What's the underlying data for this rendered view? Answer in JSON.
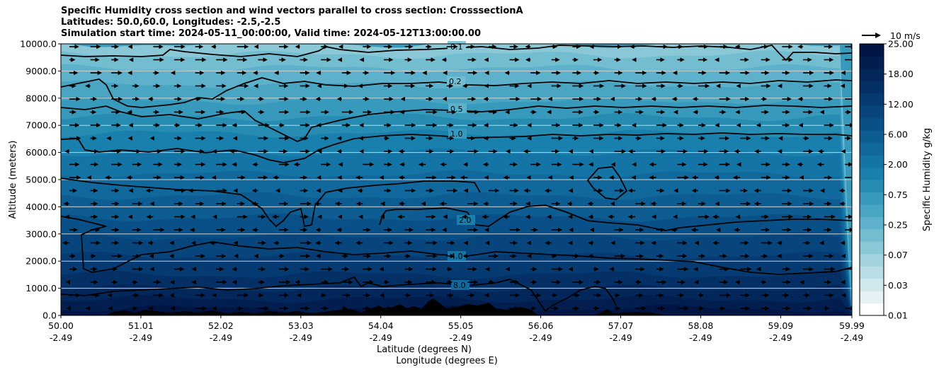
{
  "chart_data": {
    "type": "heatmap",
    "title_lines": [
      "Specific Humidity cross section and wind vectors parallel to cross section: CrosssectionA",
      "Latitudes: 50.0,60.0, Longitudes: -2.5,-2.5",
      "Simulation start time: 2024-05-11_00:00:00, Valid time: 2024-05-12T13:00:00.00"
    ],
    "ylabel": "Altitude (meters)",
    "xlabel_lat": "Latitude (degrees N)",
    "xlabel_lon": "Longitude (degrees E)",
    "ylim": [
      0,
      10000
    ],
    "y_ticks": [
      "0.0",
      "1000.0",
      "2000.0",
      "3000.0",
      "4000.0",
      "5000.0",
      "6000.0",
      "7000.0",
      "8000.0",
      "9000.0",
      "10000.0"
    ],
    "x_range": [
      50.0,
      59.99
    ],
    "x_ticks": [
      {
        "lat": "50.00",
        "lon": "-2.49"
      },
      {
        "lat": "51.01",
        "lon": "-2.49"
      },
      {
        "lat": "52.02",
        "lon": "-2.49"
      },
      {
        "lat": "53.03",
        "lon": "-2.49"
      },
      {
        "lat": "54.04",
        "lon": "-2.49"
      },
      {
        "lat": "55.05",
        "lon": "-2.49"
      },
      {
        "lat": "56.06",
        "lon": "-2.49"
      },
      {
        "lat": "57.07",
        "lon": "-2.49"
      },
      {
        "lat": "58.08",
        "lon": "-2.49"
      },
      {
        "lat": "59.09",
        "lon": "-2.49"
      },
      {
        "lat": "59.99",
        "lon": "-2.49"
      }
    ],
    "grid": "horizontal",
    "colorbar": {
      "label": "Specific Humidity g/kg",
      "levels": [
        0.01,
        0.02,
        0.03,
        0.05,
        0.07,
        0.1,
        0.25,
        0.35,
        0.5,
        0.75,
        1.0,
        1.5,
        2.0,
        3.0,
        4.0,
        6.0,
        8.0,
        10.0,
        12.0,
        15.0,
        18.0,
        20.0,
        25.0
      ],
      "tick_labels": [
        "0.01",
        "0.03",
        "0.07",
        "0.25",
        "0.75",
        "2.00",
        "6.00",
        "12.00",
        "18.00",
        "25.00"
      ],
      "colors": [
        "#ffffff",
        "#e4f2f3",
        "#cfe8ec",
        "#b8dde5",
        "#a3d3de",
        "#8ac8d8",
        "#73bdd1",
        "#5eb1cb",
        "#4aa5c3",
        "#3799bb",
        "#268cb2",
        "#1980ad",
        "#1474a5",
        "#10689c",
        "#0d5c92",
        "#0a5088",
        "#08457d",
        "#063a72",
        "#043066",
        "#03275b",
        "#021e4f",
        "#011544"
      ]
    },
    "quiver_key": "10 m/s",
    "contour_levels": [
      {
        "value": 0.1,
        "label": "0.1",
        "approx_altitude_m": 9700
      },
      {
        "value": 0.2,
        "label": "0.2",
        "approx_altitude_m": 8500
      },
      {
        "value": 0.5,
        "label": "0.5",
        "approx_altitude_m": 7600
      },
      {
        "value": 1.0,
        "label": "1.0",
        "approx_altitude_m": 6500
      },
      {
        "value": 2.0,
        "label": "2.0",
        "approx_altitude_m": 3400
      },
      {
        "value": 4.0,
        "label": "4.0",
        "approx_altitude_m": 2300
      },
      {
        "value": 8.0,
        "label": "8.0",
        "approx_altitude_m": 900
      }
    ]
  }
}
